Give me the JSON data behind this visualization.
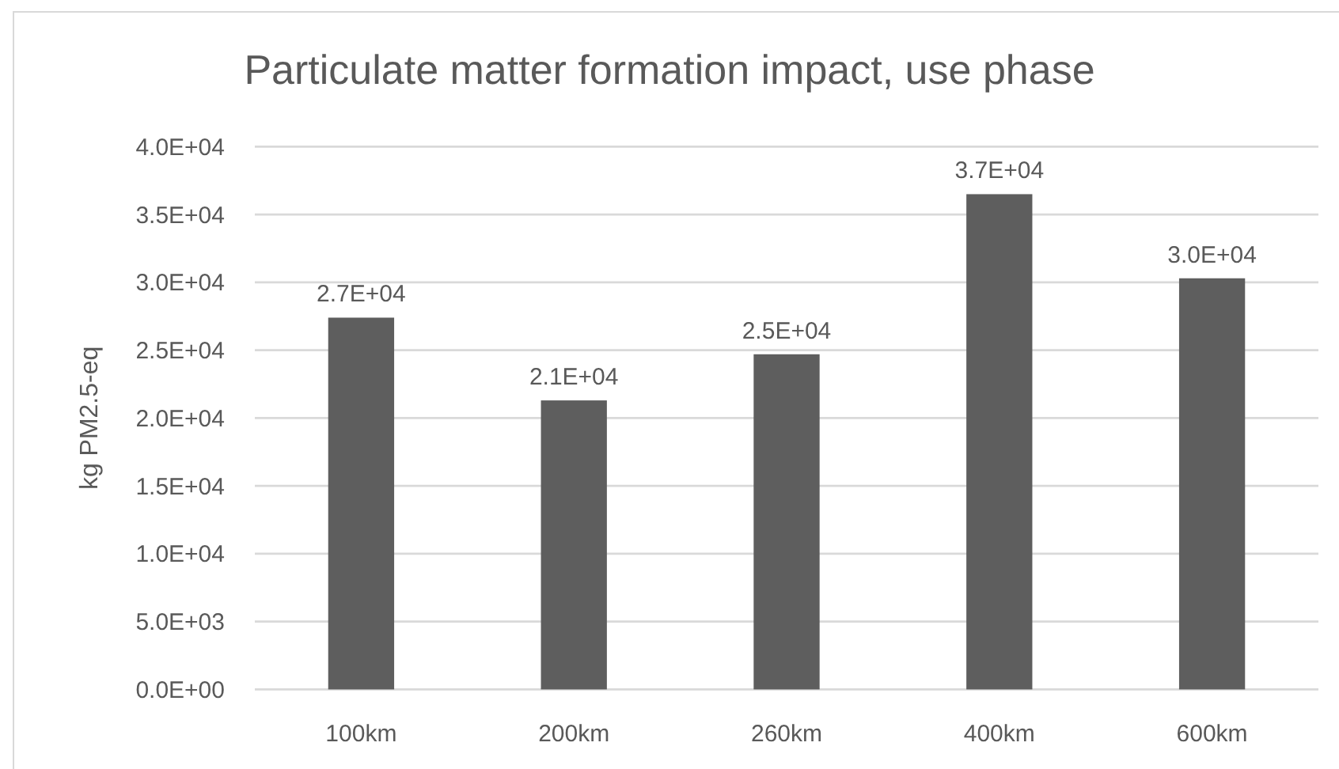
{
  "chart_data": {
    "type": "bar",
    "title": "Particulate matter formation impact, use phase",
    "ylabel": "kg PM2.5-eq",
    "categories": [
      "100km",
      "200km",
      "260km",
      "400km",
      "600km"
    ],
    "values": [
      27400,
      21300,
      24700,
      36500,
      30300
    ],
    "value_labels": [
      "2.7E+04",
      "2.1E+04",
      "2.5E+04",
      "3.7E+04",
      "3.0E+04"
    ],
    "color": "#5e5e5e",
    "ylim": [
      0,
      40000
    ],
    "yticks": [
      {
        "value": 0,
        "label": "0.0E+00"
      },
      {
        "value": 5000,
        "label": "5.0E+03"
      },
      {
        "value": 10000,
        "label": "1.0E+04"
      },
      {
        "value": 15000,
        "label": "1.5E+04"
      },
      {
        "value": 20000,
        "label": "2.0E+04"
      },
      {
        "value": 25000,
        "label": "2.5E+04"
      },
      {
        "value": 30000,
        "label": "3.0E+04"
      },
      {
        "value": 35000,
        "label": "3.5E+04"
      },
      {
        "value": 40000,
        "label": "4.0E+04"
      }
    ],
    "grid": "y"
  }
}
